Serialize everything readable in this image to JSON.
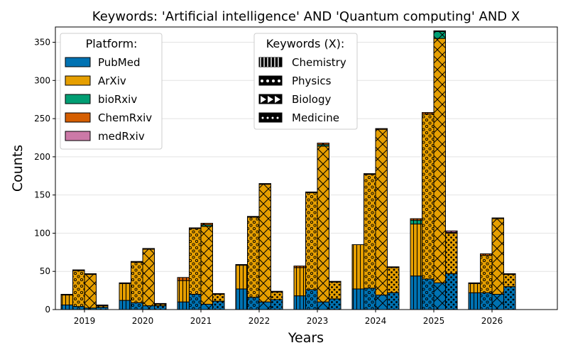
{
  "chart_data": {
    "type": "bar",
    "title": "Keywords: 'Artificial intelligence' AND 'Quantum computing' AND X",
    "xlabel": "Years",
    "ylabel": "Counts",
    "ylim": [
      0,
      370
    ],
    "yticks": [
      0,
      50,
      100,
      150,
      200,
      250,
      300,
      350
    ],
    "grid": "horizontal",
    "categories": [
      "2019",
      "2020",
      "2021",
      "2022",
      "2023",
      "2024",
      "2025",
      "2026"
    ],
    "platforms": [
      {
        "name": "PubMed",
        "color": "#0072B2"
      },
      {
        "name": "ArXiv",
        "color": "#E69F00"
      },
      {
        "name": "bioRxiv",
        "color": "#009E73"
      },
      {
        "name": "ChemRxiv",
        "color": "#D55E00"
      },
      {
        "name": "medRxiv",
        "color": "#CC79A7"
      }
    ],
    "keywords": [
      {
        "name": "Chemistry",
        "pattern": "vertical-lines"
      },
      {
        "name": "Physics",
        "pattern": "small-circles"
      },
      {
        "name": "Biology",
        "pattern": "cross-hatch"
      },
      {
        "name": "Medicine",
        "pattern": "dots"
      }
    ],
    "series": [
      {
        "keyword": "Chemistry",
        "PubMed": [
          6,
          12,
          10,
          27,
          18,
          27,
          44,
          22
        ],
        "ArXiv": [
          13,
          22,
          28,
          31,
          37,
          58,
          68,
          12
        ],
        "bioRxiv": [
          0,
          0,
          0,
          0,
          0,
          0,
          5,
          0
        ],
        "ChemRxiv": [
          1,
          1,
          4,
          1,
          2,
          0,
          2,
          1
        ],
        "medRxiv": [
          0,
          0,
          0,
          0,
          0,
          0,
          0,
          0
        ]
      },
      {
        "keyword": "Physics",
        "PubMed": [
          4,
          9,
          20,
          16,
          26,
          28,
          40,
          22
        ],
        "ArXiv": [
          47,
          53,
          86,
          105,
          127,
          149,
          216,
          49
        ],
        "bioRxiv": [
          0,
          0,
          0,
          0,
          0,
          0,
          0,
          0
        ],
        "ChemRxiv": [
          1,
          1,
          1,
          1,
          1,
          1,
          2,
          2
        ],
        "medRxiv": [
          0,
          0,
          0,
          0,
          0,
          0,
          0,
          0
        ]
      },
      {
        "keyword": "Biology",
        "PubMed": [
          2,
          5,
          7,
          10,
          10,
          19,
          35,
          20
        ],
        "ArXiv": [
          44,
          74,
          102,
          154,
          204,
          217,
          320,
          99
        ],
        "bioRxiv": [
          0,
          0,
          2,
          0,
          2,
          0,
          9,
          0
        ],
        "ChemRxiv": [
          1,
          1,
          2,
          1,
          2,
          1,
          1,
          1
        ],
        "medRxiv": [
          0,
          0,
          0,
          0,
          0,
          0,
          0,
          0
        ]
      },
      {
        "keyword": "Medicine",
        "PubMed": [
          3,
          5,
          11,
          13,
          14,
          22,
          47,
          30
        ],
        "ArXiv": [
          2,
          2,
          9,
          10,
          22,
          33,
          53,
          16
        ],
        "bioRxiv": [
          0,
          0,
          0,
          0,
          0,
          0,
          0,
          0
        ],
        "ChemRxiv": [
          1,
          1,
          1,
          1,
          1,
          1,
          1,
          1
        ],
        "medRxiv": [
          0,
          0,
          0,
          0,
          0,
          0,
          2,
          0
        ]
      }
    ],
    "legend_platform_title": "Platform:",
    "legend_keyword_title": "Keywords (X):",
    "legend_placement": "top-left and top-center"
  }
}
